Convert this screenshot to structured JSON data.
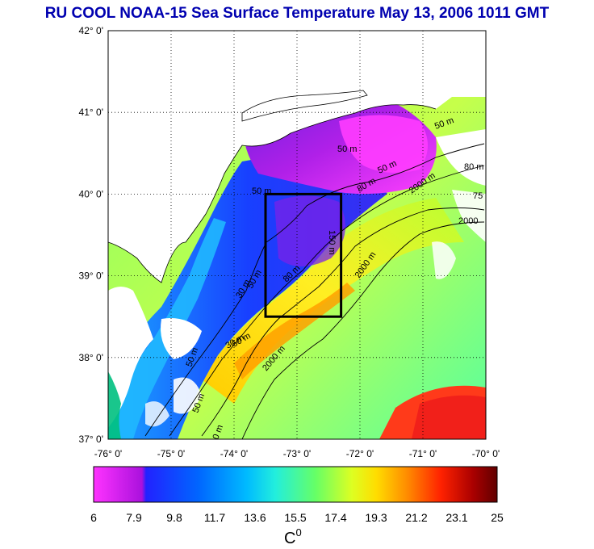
{
  "title": "RU COOL  NOAA-15 Sea Surface Temperature May 13, 2006 1011 GMT",
  "map": {
    "lon_range": [
      -76,
      -70
    ],
    "lat_range": [
      37,
      42
    ],
    "lon_ticks": [
      "-76° 0'",
      "-75° 0'",
      "-74° 0'",
      "-73° 0'",
      "-72° 0'",
      "-71° 0'",
      "-70° 0'"
    ],
    "lat_ticks": [
      "42° 0'",
      "41° 0'",
      "40° 0'",
      "39° 0'",
      "38° 0'",
      "37° 0'"
    ],
    "grid": "dotted",
    "study_box": {
      "lon": [
        -73.5,
        -72.3
      ],
      "lat": [
        38.5,
        40.0
      ]
    },
    "contour_labels": [
      "50 m",
      "50 m",
      "50 m",
      "80 m",
      "30 m",
      "50 m",
      "80 m",
      "50 m",
      "2000 m",
      "2000 m",
      "2000",
      "75",
      "50 m",
      "80 m",
      "50 m",
      "50 m",
      "30 m",
      "150 m",
      "2000 m",
      "0 m"
    ]
  },
  "colorbar": {
    "ticks": [
      "6",
      "7.9",
      "9.8",
      "11.7",
      "13.6",
      "15.5",
      "17.4",
      "19.3",
      "21.2",
      "23.1",
      "25"
    ],
    "unit": "C",
    "unit_sup": "0",
    "colors": [
      "#ff33ff",
      "#aa11dd",
      "#2222ff",
      "#0066ff",
      "#00bbff",
      "#22eedd",
      "#66ff66",
      "#ddff22",
      "#ffdd00",
      "#ff8800",
      "#ff2200",
      "#aa0000",
      "#600000"
    ]
  },
  "colors": {
    "title": "#0000b0",
    "land": "#ffffff",
    "box": "#000000"
  }
}
